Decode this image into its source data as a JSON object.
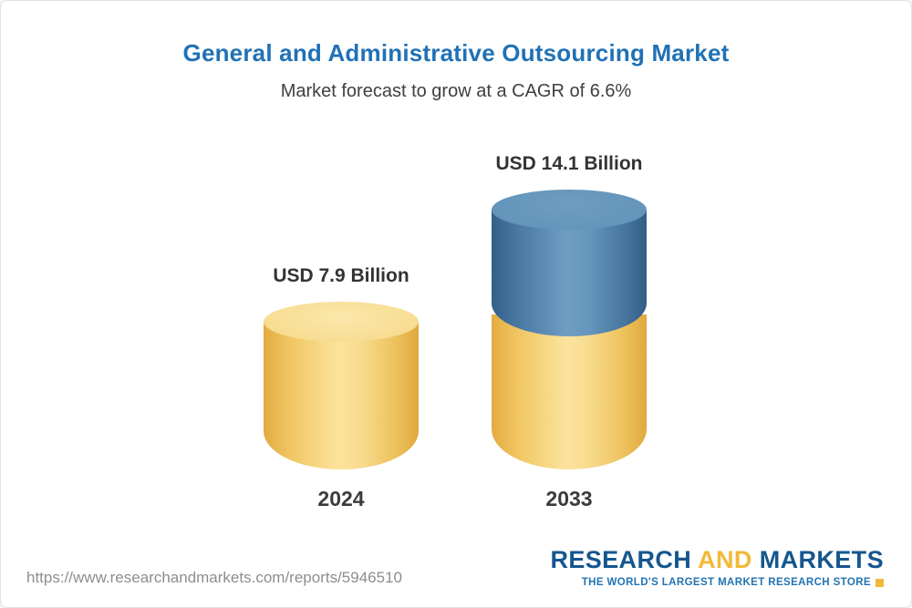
{
  "header": {
    "title": "General and Administrative Outsourcing Market",
    "subtitle": "Market forecast to grow at a CAGR of 6.6%"
  },
  "chart_data": {
    "type": "bar",
    "categories": [
      "2024",
      "2033"
    ],
    "values": [
      7.9,
      14.1
    ],
    "unit": "USD Billion",
    "value_labels": [
      "USD 7.9 Billion",
      "USD 14.1 Billion"
    ],
    "cagr_percent": 6.6,
    "title": "General and Administrative Outsourcing Market",
    "xlabel": "",
    "ylabel": "",
    "legend": "none",
    "grid": false,
    "style": "3d-cylinder",
    "colors": {
      "cylinder_yellow": "#f6d27e",
      "cylinder_blue": "#4e81ac",
      "note": "2033 cylinder is yellow base (2024 level) with blue growth segment on top"
    }
  },
  "footer": {
    "url": "https://www.researchandmarkets.com/reports/5946510",
    "logo": {
      "research": "RESEARCH",
      "and": "AND",
      "markets": "MARKETS",
      "tagline": "THE WORLD'S LARGEST MARKET RESEARCH STORE"
    }
  }
}
